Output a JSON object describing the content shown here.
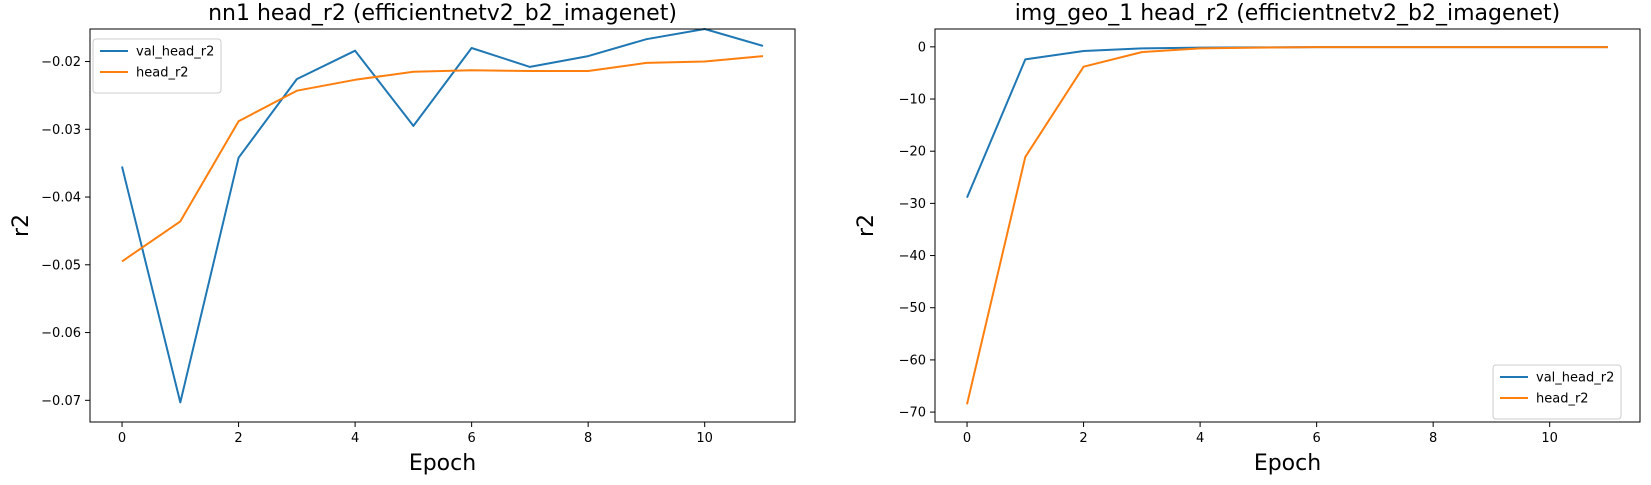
{
  "chart_data": [
    {
      "type": "line",
      "title": "nn1 head_r2 (efficientnetv2_b2_imagenet)",
      "xlabel": "Epoch",
      "ylabel": "r2",
      "x": [
        0,
        1,
        2,
        3,
        4,
        5,
        6,
        7,
        8,
        9,
        10,
        11
      ],
      "xlim": [
        -0.55,
        11.55
      ],
      "ylim": [
        -0.0732,
        -0.0152
      ],
      "xticks": [
        0,
        2,
        4,
        6,
        8,
        10
      ],
      "xtick_labels": [
        "0",
        "2",
        "4",
        "6",
        "8",
        "10"
      ],
      "yticks": [
        -0.07,
        -0.06,
        -0.05,
        -0.04,
        -0.03,
        -0.02
      ],
      "ytick_labels": [
        "−0.07",
        "−0.06",
        "−0.05",
        "−0.04",
        "−0.03",
        "−0.02"
      ],
      "grid": false,
      "legend_position": "upper left",
      "series": [
        {
          "name": "val_head_r2",
          "color": "#1f77b4",
          "values": [
            -0.0355,
            -0.0703,
            -0.0342,
            -0.0226,
            -0.0184,
            -0.0295,
            -0.018,
            -0.0208,
            -0.0192,
            -0.0167,
            -0.0152,
            -0.0177
          ]
        },
        {
          "name": "head_r2",
          "color": "#ff7f0e",
          "values": [
            -0.0495,
            -0.0436,
            -0.0288,
            -0.0243,
            -0.0227,
            -0.0215,
            -0.0213,
            -0.0214,
            -0.0214,
            -0.0202,
            -0.02,
            -0.0192
          ]
        }
      ]
    },
    {
      "type": "line",
      "title": "img_geo_1 head_r2 (efficientnetv2_b2_imagenet)",
      "xlabel": "Epoch",
      "ylabel": "r2",
      "x": [
        0,
        1,
        2,
        3,
        4,
        5,
        6,
        7,
        8,
        9,
        10,
        11
      ],
      "xlim": [
        -0.55,
        11.55
      ],
      "ylim": [
        -71.9,
        3.42
      ],
      "xticks": [
        0,
        2,
        4,
        6,
        8,
        10
      ],
      "xtick_labels": [
        "0",
        "2",
        "4",
        "6",
        "8",
        "10"
      ],
      "yticks": [
        -70,
        -60,
        -50,
        -40,
        -30,
        -20,
        -10,
        0
      ],
      "ytick_labels": [
        "−70",
        "−60",
        "−50",
        "−40",
        "−30",
        "−20",
        "−10",
        "0"
      ],
      "grid": false,
      "legend_position": "lower right",
      "series": [
        {
          "name": "val_head_r2",
          "color": "#1f77b4",
          "values": [
            -28.9,
            -2.4,
            -0.8,
            -0.3,
            -0.15,
            -0.1,
            -0.05,
            -0.05,
            -0.05,
            -0.05,
            -0.05,
            -0.05
          ]
        },
        {
          "name": "head_r2",
          "color": "#ff7f0e",
          "values": [
            -68.5,
            -21.1,
            -3.8,
            -1.0,
            -0.3,
            -0.15,
            -0.05,
            -0.05,
            -0.05,
            -0.05,
            -0.05,
            -0.05
          ]
        }
      ]
    }
  ]
}
